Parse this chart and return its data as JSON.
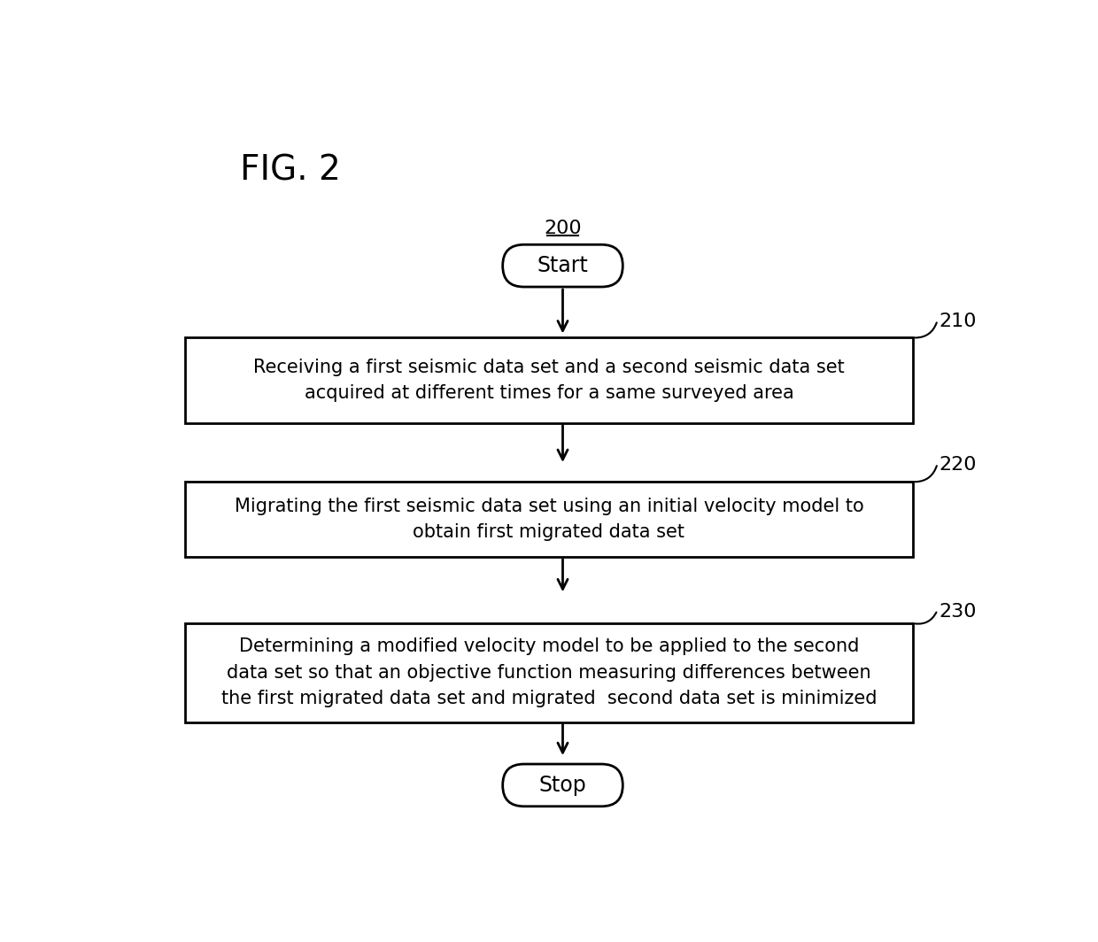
{
  "title": "FIG. 2",
  "fig_label": "200",
  "bg_color": "#ffffff",
  "text_color": "#000000",
  "box_edge_color": "#000000",
  "box_fill_color": "#ffffff",
  "arrow_color": "#000000",
  "start_stop_text": [
    "Start",
    "Stop"
  ],
  "step_labels": [
    "210",
    "220",
    "230"
  ],
  "step_texts": [
    "Receiving a first seismic data set and a second seismic data set\nacquired at different times for a same surveyed area",
    "Migrating the first seismic data set using an initial velocity model to\nobtain first migrated data set",
    "Determining a modified velocity model to be applied to the second\ndata set so that an objective function measuring differences between\nthe first migrated data set and migrated  second data set is minimized"
  ],
  "font_size_title": 28,
  "font_size_label": 16,
  "font_size_step_label": 16,
  "font_size_box": 15
}
